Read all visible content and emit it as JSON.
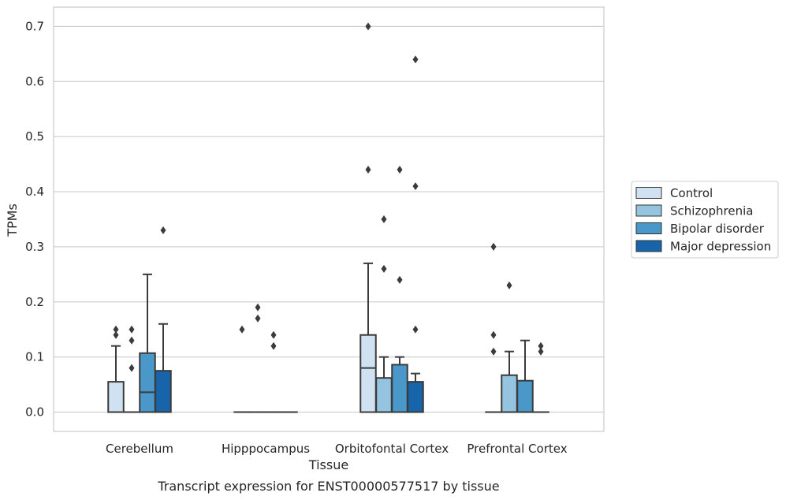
{
  "chart_data": {
    "type": "box",
    "title": "",
    "caption": "Transcript expression for ENST00000577517 by tissue",
    "xlabel": "Tissue",
    "ylabel": "TPMs",
    "ylim": [
      -0.035,
      0.735
    ],
    "yticks": [
      "0.0",
      "0.1",
      "0.2",
      "0.3",
      "0.4",
      "0.5",
      "0.6",
      "0.7"
    ],
    "ytick_values": [
      0,
      0.1,
      0.2,
      0.3,
      0.4,
      0.5,
      0.6,
      0.7
    ],
    "grid": true,
    "legend_position": "right",
    "categories": [
      "Cerebellum",
      "Hipppocampus",
      "Orbitofontal Cortex",
      "Prefrontal Cortex"
    ],
    "series": [
      {
        "name": "Control",
        "color": "#d0e1f2",
        "boxes": [
          {
            "q1": 0,
            "median": 0,
            "q3": 0.055,
            "whisker_low": 0,
            "whisker_high": 0.12,
            "outliers": [
              0.14,
              0.15
            ]
          },
          {
            "q1": 0,
            "median": 0,
            "q3": 0,
            "whisker_low": 0,
            "whisker_high": 0,
            "outliers": [
              0.15
            ]
          },
          {
            "q1": 0,
            "median": 0.08,
            "q3": 0.14,
            "whisker_low": 0,
            "whisker_high": 0.27,
            "outliers": [
              0.44,
              0.7
            ]
          },
          {
            "q1": 0,
            "median": 0,
            "q3": 0,
            "whisker_low": 0,
            "whisker_high": 0,
            "outliers": [
              0.11,
              0.14,
              0.3
            ]
          }
        ]
      },
      {
        "name": "Schizophrenia",
        "color": "#94c4df",
        "boxes": [
          {
            "q1": 0,
            "median": 0,
            "q3": 0,
            "whisker_low": 0,
            "whisker_high": 0,
            "outliers": [
              0.08,
              0.13,
              0.15
            ]
          },
          {
            "q1": 0,
            "median": 0,
            "q3": 0,
            "whisker_low": 0,
            "whisker_high": 0,
            "outliers": [
              0.17,
              0.19
            ]
          },
          {
            "q1": 0,
            "median": 0,
            "q3": 0.062,
            "whisker_low": 0,
            "whisker_high": 0.1,
            "outliers": [
              0.26,
              0.35
            ]
          },
          {
            "q1": 0,
            "median": 0,
            "q3": 0.067,
            "whisker_low": 0,
            "whisker_high": 0.11,
            "outliers": [
              0.23
            ]
          }
        ]
      },
      {
        "name": "Bipolar disorder",
        "color": "#4a98c9",
        "boxes": [
          {
            "q1": 0,
            "median": 0.036,
            "q3": 0.107,
            "whisker_low": 0,
            "whisker_high": 0.25,
            "outliers": []
          },
          {
            "q1": 0,
            "median": 0,
            "q3": 0,
            "whisker_low": 0,
            "whisker_high": 0,
            "outliers": [
              0.12,
              0.14
            ]
          },
          {
            "q1": 0,
            "median": 0,
            "q3": 0.086,
            "whisker_low": 0,
            "whisker_high": 0.1,
            "outliers": [
              0.24,
              0.44
            ]
          },
          {
            "q1": 0,
            "median": 0,
            "q3": 0.057,
            "whisker_low": 0,
            "whisker_high": 0.13,
            "outliers": []
          }
        ]
      },
      {
        "name": "Major depression",
        "color": "#1764ab",
        "boxes": [
          {
            "q1": 0,
            "median": 0,
            "q3": 0.075,
            "whisker_low": 0,
            "whisker_high": 0.16,
            "outliers": [
              0.33
            ]
          },
          {
            "q1": 0,
            "median": 0,
            "q3": 0,
            "whisker_low": 0,
            "whisker_high": 0,
            "outliers": []
          },
          {
            "q1": 0,
            "median": 0,
            "q3": 0.055,
            "whisker_low": 0,
            "whisker_high": 0.07,
            "outliers": [
              0.15,
              0.41,
              0.64
            ]
          },
          {
            "q1": 0,
            "median": 0,
            "q3": 0,
            "whisker_low": 0,
            "whisker_high": 0,
            "outliers": [
              0.11,
              0.12
            ]
          }
        ]
      }
    ]
  }
}
